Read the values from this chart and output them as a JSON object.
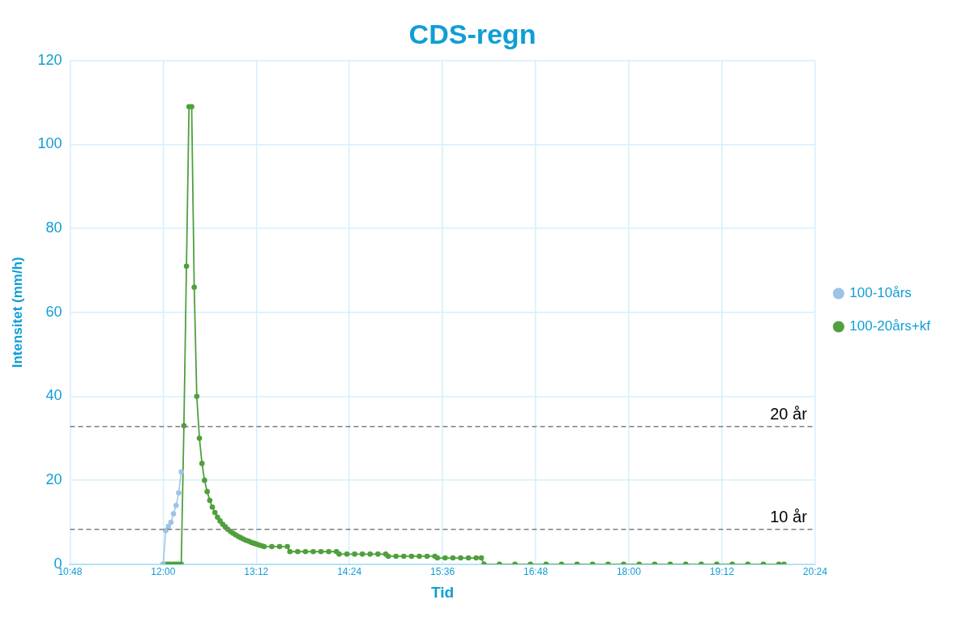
{
  "chart_data": {
    "type": "line",
    "title": "CDS-regn",
    "xlabel": "Tid",
    "ylabel": "Intensitet (mm/h)",
    "xlim": [
      10.8,
      20.4
    ],
    "xticks": [
      {
        "value": 10.8,
        "label": "10:48"
      },
      {
        "value": 12,
        "label": "12:00"
      },
      {
        "value": 13.2,
        "label": "13:12"
      },
      {
        "value": 14.4,
        "label": "14:24"
      },
      {
        "value": 15.6,
        "label": "15:36"
      },
      {
        "value": 16.8,
        "label": "16:48"
      },
      {
        "value": 18,
        "label": "18:00"
      },
      {
        "value": 19.2,
        "label": "19:12"
      },
      {
        "value": 20.4,
        "label": "20:24"
      }
    ],
    "ylim": [
      0,
      120
    ],
    "yticks": [
      0,
      20,
      40,
      60,
      80,
      100,
      120
    ],
    "grid": true,
    "legend": "right",
    "marker": "circle",
    "line_style": "solid",
    "series": [
      {
        "name": "100-10års",
        "color": "#9dc3e6",
        "x": [
          12.0,
          12.033,
          12.067,
          12.1,
          12.133,
          12.167,
          12.2,
          12.233
        ],
        "values": [
          0,
          8,
          9,
          10,
          12,
          14,
          17,
          22
        ]
      },
      {
        "name": "100-20års+kf",
        "color": "#4ea03c",
        "x": [
          12.0,
          12.033,
          12.067,
          12.1,
          12.133,
          12.167,
          12.2,
          12.233,
          12.267,
          12.3,
          12.333,
          12.367,
          12.4,
          12.433,
          12.467,
          12.5,
          12.533,
          12.567,
          12.6,
          12.633,
          12.667,
          12.7,
          12.733,
          12.767,
          12.8,
          12.833,
          12.867,
          12.9,
          12.933,
          12.967,
          13.0,
          13.033,
          13.067,
          13.1,
          13.133,
          13.167,
          13.2,
          13.233,
          13.267,
          13.3,
          13.4,
          13.5,
          13.6,
          13.633,
          13.733,
          13.833,
          13.933,
          14.033,
          14.133,
          14.233,
          14.267,
          14.367,
          14.467,
          14.567,
          14.667,
          14.767,
          14.867,
          14.9,
          15.0,
          15.1,
          15.2,
          15.3,
          15.4,
          15.5,
          15.533,
          15.633,
          15.733,
          15.833,
          15.933,
          16.033,
          16.1,
          16.133,
          16.333,
          16.533,
          16.733,
          16.933,
          17.133,
          17.333,
          17.533,
          17.733,
          17.933,
          18.133,
          18.333,
          18.533,
          18.733,
          18.933,
          19.133,
          19.333,
          19.533,
          19.733,
          19.933,
          20.0
        ],
        "values": [
          0,
          0,
          0,
          0,
          0,
          0,
          0,
          0,
          33,
          71,
          109,
          109,
          66,
          40,
          30,
          24,
          20,
          17.3,
          15.2,
          13.6,
          12.3,
          11.2,
          10.3,
          9.5,
          8.9,
          8.3,
          7.8,
          7.4,
          7.0,
          6.6,
          6.3,
          6.0,
          5.7,
          5.5,
          5.2,
          5.0,
          4.8,
          4.6,
          4.4,
          4.2,
          4.2,
          4.2,
          4.2,
          3.0,
          3.0,
          3.0,
          3.0,
          3.0,
          3.0,
          3.0,
          2.4,
          2.4,
          2.4,
          2.4,
          2.4,
          2.4,
          2.4,
          1.9,
          1.9,
          1.9,
          1.9,
          1.9,
          1.9,
          1.9,
          1.5,
          1.5,
          1.5,
          1.5,
          1.5,
          1.5,
          1.5,
          0,
          0,
          0,
          0,
          0,
          0,
          0,
          0,
          0,
          0,
          0,
          0,
          0,
          0,
          0,
          0,
          0,
          0,
          0,
          0,
          0
        ]
      }
    ],
    "ref_lines": [
      {
        "axis": "y",
        "value": 32.8,
        "label": "20 år",
        "color": "#7f7f7f",
        "line_style": "dashed"
      },
      {
        "axis": "y",
        "value": 8.3,
        "label": "10 år",
        "color": "#7f7f7f",
        "line_style": "dashed"
      }
    ]
  }
}
